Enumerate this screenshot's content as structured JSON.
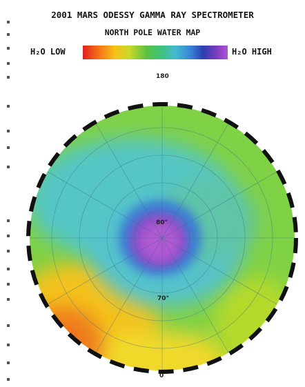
{
  "title": {
    "line1": "2001 MARS ODESSY GAMMA RAY SPECTROMETER",
    "line2": "NORTH POLE WATER MAP"
  },
  "legend": {
    "low_label": "H₂O LOW",
    "high_label": "H₂O HIGH",
    "gradient": [
      "#e0201a",
      "#f7c019",
      "#5cc145",
      "#44b9d1",
      "#2b3fb2",
      "#b055d4"
    ]
  },
  "map": {
    "longitude_labels": {
      "top": "180",
      "bottom": "0"
    },
    "latitude_labels": {
      "inner": "80°",
      "middle": "70°"
    }
  }
}
